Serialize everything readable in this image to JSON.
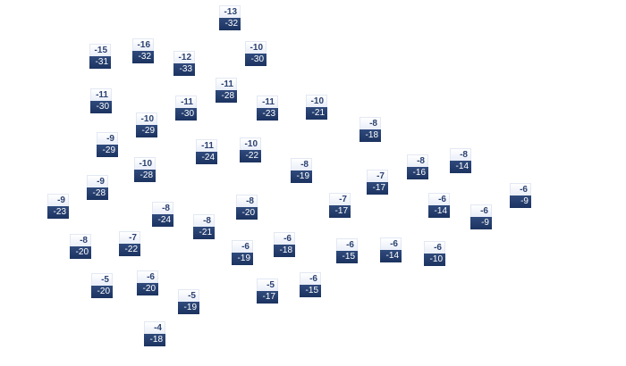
{
  "chart_data": {
    "type": "scatter",
    "title": "",
    "colors": {
      "label_top_text": "#2b4170",
      "label_bottom_bg": "#1c3360",
      "label_bottom_text": "#ffffff"
    },
    "points": [
      {
        "top": -13,
        "bottom": -32
      },
      {
        "top": -15,
        "bottom": -31
      },
      {
        "top": -16,
        "bottom": -32
      },
      {
        "top": -12,
        "bottom": -33
      },
      {
        "top": -10,
        "bottom": -30
      },
      {
        "top": -11,
        "bottom": -30
      },
      {
        "top": -11,
        "bottom": -28
      },
      {
        "top": -11,
        "bottom": -30
      },
      {
        "top": -11,
        "bottom": -23
      },
      {
        "top": -10,
        "bottom": -21
      },
      {
        "top": -10,
        "bottom": -29
      },
      {
        "top": -8,
        "bottom": -18
      },
      {
        "top": -9,
        "bottom": -29
      },
      {
        "top": -11,
        "bottom": -24
      },
      {
        "top": -10,
        "bottom": -22
      },
      {
        "top": -10,
        "bottom": -28
      },
      {
        "top": -8,
        "bottom": -19
      },
      {
        "top": -8,
        "bottom": -16
      },
      {
        "top": -8,
        "bottom": -14
      },
      {
        "top": -7,
        "bottom": -17
      },
      {
        "top": -9,
        "bottom": -28
      },
      {
        "top": -6,
        "bottom": -9
      },
      {
        "top": -9,
        "bottom": -23
      },
      {
        "top": -7,
        "bottom": -17
      },
      {
        "top": -6,
        "bottom": -14
      },
      {
        "top": -8,
        "bottom": -24
      },
      {
        "top": -8,
        "bottom": -20
      },
      {
        "top": -6,
        "bottom": -9
      },
      {
        "top": -8,
        "bottom": -21
      },
      {
        "top": -8,
        "bottom": -20
      },
      {
        "top": -7,
        "bottom": -22
      },
      {
        "top": -6,
        "bottom": -19
      },
      {
        "top": -6,
        "bottom": -18
      },
      {
        "top": -6,
        "bottom": -15
      },
      {
        "top": -6,
        "bottom": -14
      },
      {
        "top": -6,
        "bottom": -10
      },
      {
        "top": -5,
        "bottom": -20
      },
      {
        "top": -6,
        "bottom": -20
      },
      {
        "top": -5,
        "bottom": -17
      },
      {
        "top": -6,
        "bottom": -15
      },
      {
        "top": -5,
        "bottom": -19
      },
      {
        "top": -4,
        "bottom": -18
      }
    ]
  }
}
